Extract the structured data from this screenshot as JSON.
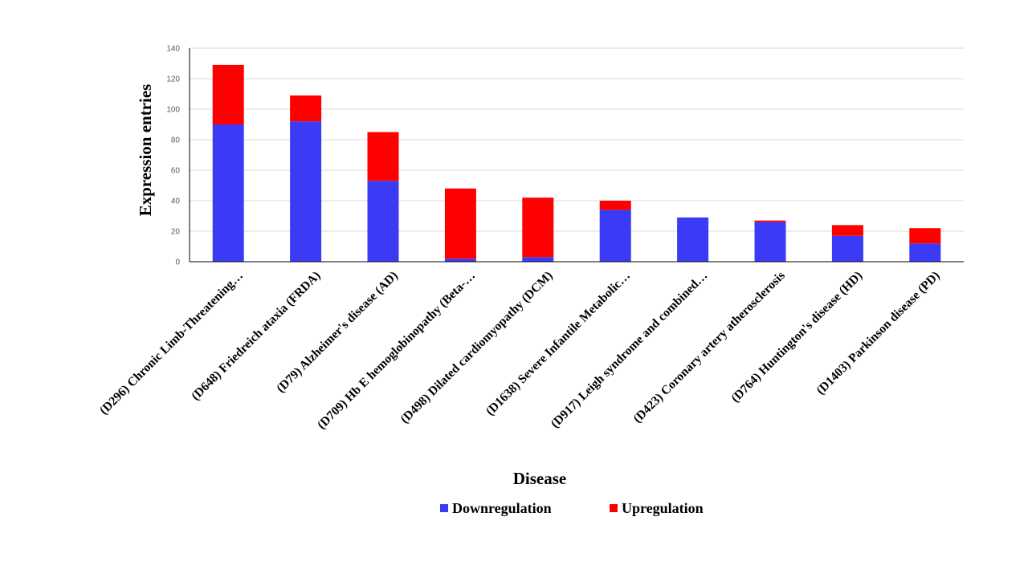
{
  "chart_data": {
    "type": "bar",
    "stacked": true,
    "title": "",
    "xlabel": "Disease",
    "ylabel": "Expression entries",
    "ylim": [
      0,
      140
    ],
    "yticks": [
      0,
      20,
      40,
      60,
      80,
      100,
      120,
      140
    ],
    "grid": true,
    "legend_position": "bottom",
    "categories": [
      "(D296) Chronic Limb-Threatening…",
      "(D648) Friedreich ataxia (FRDA)",
      "(D79) Alzheimer's disease (AD)",
      "(D709) Hb E hemoglobinopathy (Beta-…",
      "(D498) Dilated cardiomyopathy (DCM)",
      "(D1638) Severe Infantile Metabolic…",
      "(D917) Leigh syndrome and combined…",
      "(D423) Coronary artery atherosclerosis",
      "(D764) Huntington's disease (HD)",
      "(D1403) Parkinson disease (PD)"
    ],
    "series": [
      {
        "name": "Downregulation",
        "color": "#3b3bf5",
        "values": [
          90,
          92,
          53,
          2,
          3,
          34,
          29,
          26,
          17,
          12
        ]
      },
      {
        "name": "Upregulation",
        "color": "#ff0000",
        "values": [
          39,
          17,
          32,
          46,
          39,
          6,
          0,
          1,
          7,
          10
        ]
      }
    ]
  }
}
